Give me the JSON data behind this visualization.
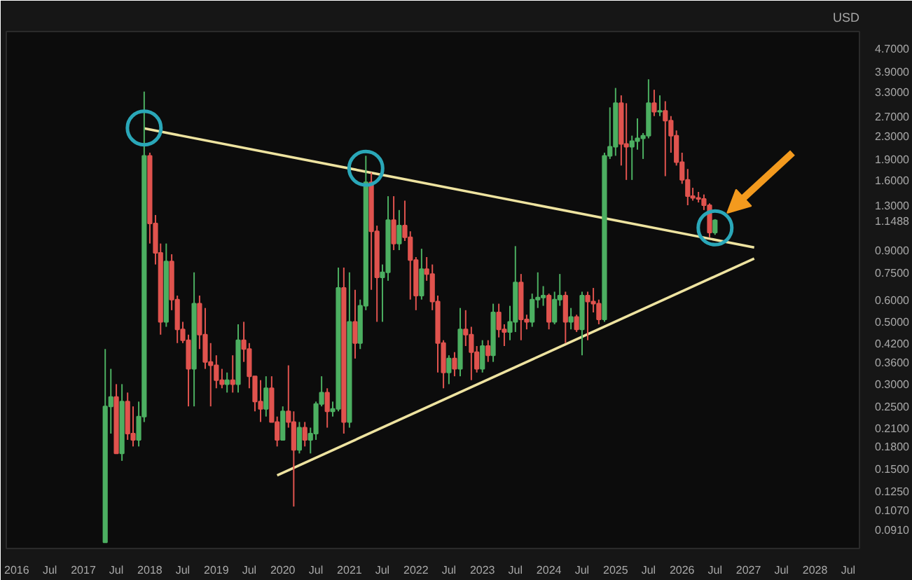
{
  "chart_data": {
    "type": "candlestick",
    "ylabel": "USD",
    "log": true,
    "xlim": [
      "2015-11-05",
      "2028-09-01"
    ],
    "xticks": [
      {
        "value": "2016-01",
        "label": "2016"
      },
      {
        "value": "2016-07",
        "label": "Jul"
      },
      {
        "value": "2017-01",
        "label": "2017"
      },
      {
        "value": "2017-07",
        "label": "Jul"
      },
      {
        "value": "2018-01",
        "label": "2018"
      },
      {
        "value": "2018-07",
        "label": "Jul"
      },
      {
        "value": "2019-01",
        "label": "2019"
      },
      {
        "value": "2019-07",
        "label": "Jul"
      },
      {
        "value": "2020-01",
        "label": "2020"
      },
      {
        "value": "2020-07",
        "label": "Jul"
      },
      {
        "value": "2021-01",
        "label": "2021"
      },
      {
        "value": "2021-07",
        "label": "Jul"
      },
      {
        "value": "2022-01",
        "label": "2022"
      },
      {
        "value": "2022-07",
        "label": "Jul"
      },
      {
        "value": "2023-01",
        "label": "2023"
      },
      {
        "value": "2023-07",
        "label": "Jul"
      },
      {
        "value": "2024-01",
        "label": "2024"
      },
      {
        "value": "2024-07",
        "label": "Jul"
      },
      {
        "value": "2025-01",
        "label": "2025"
      },
      {
        "value": "2025-07",
        "label": "Jul"
      },
      {
        "value": "2026-01",
        "label": "2026"
      },
      {
        "value": "2026-07",
        "label": "Jul"
      },
      {
        "value": "2027-01",
        "label": "2027"
      },
      {
        "value": "2027-07",
        "label": "Jul"
      },
      {
        "value": "2028-01",
        "label": "2028"
      },
      {
        "value": "2028-07",
        "label": "Jul"
      }
    ],
    "ylim": [
      0.078,
      5.4
    ],
    "yticks": [
      {
        "value": 4.7,
        "label": "4.7000"
      },
      {
        "value": 3.9,
        "label": "3.9000"
      },
      {
        "value": 3.3,
        "label": "3.3000"
      },
      {
        "value": 2.7,
        "label": "2.7000"
      },
      {
        "value": 2.3,
        "label": "2.3000"
      },
      {
        "value": 1.9,
        "label": "1.9000"
      },
      {
        "value": 1.6,
        "label": "1.6000"
      },
      {
        "value": 1.3,
        "label": "1.3000"
      },
      {
        "value": 1.1488,
        "label": "1.1488"
      },
      {
        "value": 0.9,
        "label": "0.9000"
      },
      {
        "value": 0.75,
        "label": "0.7500"
      },
      {
        "value": 0.6,
        "label": "0.6000"
      },
      {
        "value": 0.5,
        "label": "0.5000"
      },
      {
        "value": 0.42,
        "label": "0.4200"
      },
      {
        "value": 0.36,
        "label": "0.3600"
      },
      {
        "value": 0.3,
        "label": "0.3000"
      },
      {
        "value": 0.25,
        "label": "0.2500"
      },
      {
        "value": 0.21,
        "label": "0.2100"
      },
      {
        "value": 0.18,
        "label": "0.1800"
      },
      {
        "value": 0.15,
        "label": "0.1500"
      },
      {
        "value": 0.125,
        "label": "0.1250"
      },
      {
        "value": 0.107,
        "label": "0.1070"
      },
      {
        "value": 0.091,
        "label": "0.0910"
      }
    ],
    "x": [
      "2017-05",
      "2017-06",
      "2017-07",
      "2017-08",
      "2017-09",
      "2017-10",
      "2017-11",
      "2017-12",
      "2018-01",
      "2018-02",
      "2018-03",
      "2018-04",
      "2018-05",
      "2018-06",
      "2018-07",
      "2018-08",
      "2018-09",
      "2018-10",
      "2018-11",
      "2018-12",
      "2019-01",
      "2019-02",
      "2019-03",
      "2019-04",
      "2019-05",
      "2019-06",
      "2019-07",
      "2019-08",
      "2019-09",
      "2019-10",
      "2019-11",
      "2019-12",
      "2020-01",
      "2020-02",
      "2020-03",
      "2020-04",
      "2020-05",
      "2020-06",
      "2020-07",
      "2020-08",
      "2020-09",
      "2020-10",
      "2020-11",
      "2020-12",
      "2021-01",
      "2021-02",
      "2021-03",
      "2021-04",
      "2021-05",
      "2021-06",
      "2021-07",
      "2021-08",
      "2021-09",
      "2021-10",
      "2021-11",
      "2021-12",
      "2022-01",
      "2022-02",
      "2022-03",
      "2022-04",
      "2022-05",
      "2022-06",
      "2022-07",
      "2022-08",
      "2022-09",
      "2022-10",
      "2022-11",
      "2022-12",
      "2023-01",
      "2023-02",
      "2023-03",
      "2023-04",
      "2023-05",
      "2023-06",
      "2023-07",
      "2023-08",
      "2023-09",
      "2023-10",
      "2023-11",
      "2023-12",
      "2024-01",
      "2024-02",
      "2024-03",
      "2024-04",
      "2024-05",
      "2024-06",
      "2024-07",
      "2024-08",
      "2024-09",
      "2024-10",
      "2024-11",
      "2024-12",
      "2025-01",
      "2025-02",
      "2025-03",
      "2025-04",
      "2025-05",
      "2025-06",
      "2025-07",
      "2025-08",
      "2025-09",
      "2025-10",
      "2025-11",
      "2025-12",
      "2026-01",
      "2026-02",
      "2026-03",
      "2026-04",
      "2026-05",
      "2026-06",
      "2026-07"
    ],
    "ohlc": [
      [
        0.082,
        0.4,
        0.082,
        0.25
      ],
      [
        0.25,
        0.34,
        0.2,
        0.27
      ],
      [
        0.27,
        0.3,
        0.17,
        0.17
      ],
      [
        0.17,
        0.3,
        0.16,
        0.26
      ],
      [
        0.26,
        0.28,
        0.19,
        0.2
      ],
      [
        0.2,
        0.25,
        0.18,
        0.19
      ],
      [
        0.19,
        0.26,
        0.18,
        0.23
      ],
      [
        0.23,
        3.3,
        0.22,
        1.95
      ],
      [
        1.95,
        2.0,
        0.95,
        1.12
      ],
      [
        1.12,
        1.2,
        0.8,
        0.88
      ],
      [
        0.88,
        0.95,
        0.45,
        0.5
      ],
      [
        0.5,
        0.95,
        0.48,
        0.82
      ],
      [
        0.82,
        0.87,
        0.55,
        0.6
      ],
      [
        0.6,
        0.62,
        0.42,
        0.47
      ],
      [
        0.47,
        0.5,
        0.42,
        0.43
      ],
      [
        0.43,
        0.45,
        0.25,
        0.34
      ],
      [
        0.34,
        0.75,
        0.25,
        0.58
      ],
      [
        0.58,
        0.62,
        0.4,
        0.45
      ],
      [
        0.45,
        0.56,
        0.34,
        0.36
      ],
      [
        0.36,
        0.42,
        0.25,
        0.35
      ],
      [
        0.35,
        0.38,
        0.29,
        0.31
      ],
      [
        0.31,
        0.34,
        0.29,
        0.3
      ],
      [
        0.3,
        0.33,
        0.28,
        0.31
      ],
      [
        0.31,
        0.38,
        0.28,
        0.3
      ],
      [
        0.3,
        0.49,
        0.28,
        0.43
      ],
      [
        0.43,
        0.5,
        0.36,
        0.4
      ],
      [
        0.4,
        0.42,
        0.29,
        0.32
      ],
      [
        0.32,
        0.32,
        0.24,
        0.26
      ],
      [
        0.26,
        0.31,
        0.22,
        0.245
      ],
      [
        0.245,
        0.32,
        0.23,
        0.29
      ],
      [
        0.29,
        0.32,
        0.22,
        0.22
      ],
      [
        0.22,
        0.23,
        0.18,
        0.19
      ],
      [
        0.19,
        0.25,
        0.19,
        0.24
      ],
      [
        0.24,
        0.35,
        0.21,
        0.22
      ],
      [
        0.22,
        0.24,
        0.11,
        0.175
      ],
      [
        0.175,
        0.22,
        0.17,
        0.21
      ],
      [
        0.21,
        0.22,
        0.18,
        0.19
      ],
      [
        0.19,
        0.21,
        0.17,
        0.2
      ],
      [
        0.2,
        0.26,
        0.19,
        0.255
      ],
      [
        0.255,
        0.32,
        0.25,
        0.28
      ],
      [
        0.28,
        0.29,
        0.21,
        0.24
      ],
      [
        0.24,
        0.26,
        0.23,
        0.245
      ],
      [
        0.245,
        0.78,
        0.24,
        0.66
      ],
      [
        0.66,
        0.78,
        0.2,
        0.22
      ],
      [
        0.22,
        0.75,
        0.21,
        0.5
      ],
      [
        0.5,
        0.65,
        0.37,
        0.42
      ],
      [
        0.42,
        0.6,
        0.4,
        0.57
      ],
      [
        0.57,
        1.95,
        0.55,
        1.57
      ],
      [
        1.57,
        1.7,
        0.65,
        1.05
      ],
      [
        1.05,
        1.1,
        0.5,
        0.72
      ],
      [
        0.72,
        0.8,
        0.5,
        0.75
      ],
      [
        0.75,
        1.4,
        0.7,
        1.15
      ],
      [
        1.15,
        1.4,
        0.9,
        0.95
      ],
      [
        0.95,
        1.25,
        0.9,
        1.1
      ],
      [
        1.1,
        1.35,
        0.97,
        1.0
      ],
      [
        1.0,
        1.05,
        0.6,
        0.83
      ],
      [
        0.83,
        0.85,
        0.55,
        0.62
      ],
      [
        0.62,
        0.91,
        0.6,
        0.77
      ],
      [
        0.77,
        0.85,
        0.7,
        0.74
      ],
      [
        0.74,
        0.8,
        0.55,
        0.59
      ],
      [
        0.59,
        0.62,
        0.33,
        0.42
      ],
      [
        0.42,
        0.43,
        0.29,
        0.33
      ],
      [
        0.33,
        0.38,
        0.3,
        0.37
      ],
      [
        0.37,
        0.39,
        0.32,
        0.34
      ],
      [
        0.34,
        0.56,
        0.32,
        0.47
      ],
      [
        0.47,
        0.55,
        0.41,
        0.45
      ],
      [
        0.45,
        0.48,
        0.31,
        0.39
      ],
      [
        0.39,
        0.41,
        0.33,
        0.34
      ],
      [
        0.34,
        0.43,
        0.33,
        0.41
      ],
      [
        0.41,
        0.43,
        0.36,
        0.38
      ],
      [
        0.38,
        0.58,
        0.36,
        0.54
      ],
      [
        0.54,
        0.58,
        0.44,
        0.47
      ],
      [
        0.47,
        0.49,
        0.41,
        0.46
      ],
      [
        0.46,
        0.57,
        0.43,
        0.5
      ],
      [
        0.5,
        0.93,
        0.46,
        0.69
      ],
      [
        0.69,
        0.74,
        0.43,
        0.51
      ],
      [
        0.51,
        0.53,
        0.47,
        0.5
      ],
      [
        0.5,
        0.63,
        0.48,
        0.6
      ],
      [
        0.6,
        0.75,
        0.56,
        0.61
      ],
      [
        0.61,
        0.67,
        0.57,
        0.62
      ],
      [
        0.62,
        0.63,
        0.47,
        0.5
      ],
      [
        0.5,
        0.64,
        0.49,
        0.6
      ],
      [
        0.6,
        0.74,
        0.57,
        0.62
      ],
      [
        0.62,
        0.64,
        0.42,
        0.5
      ],
      [
        0.5,
        0.56,
        0.47,
        0.52
      ],
      [
        0.52,
        0.53,
        0.46,
        0.47
      ],
      [
        0.47,
        0.64,
        0.38,
        0.62
      ],
      [
        0.62,
        0.64,
        0.43,
        0.59
      ],
      [
        0.59,
        0.66,
        0.54,
        0.58
      ],
      [
        0.58,
        0.6,
        0.49,
        0.51
      ],
      [
        0.51,
        2.0,
        0.5,
        1.95
      ],
      [
        1.95,
        2.9,
        1.9,
        2.1
      ],
      [
        2.1,
        3.4,
        1.95,
        3.0
      ],
      [
        3.0,
        3.2,
        1.8,
        2.15
      ],
      [
        2.15,
        3.0,
        1.6,
        2.1
      ],
      [
        2.1,
        2.3,
        1.6,
        2.2
      ],
      [
        2.2,
        2.65,
        2.05,
        2.25
      ],
      [
        2.25,
        2.35,
        1.9,
        2.3
      ],
      [
        2.3,
        3.65,
        2.25,
        3.0
      ],
      [
        3.0,
        3.35,
        2.7,
        2.8
      ],
      [
        2.8,
        3.2,
        2.7,
        2.82
      ],
      [
        2.82,
        3.05,
        1.65,
        2.6
      ],
      [
        2.6,
        2.7,
        2.0,
        2.3
      ],
      [
        2.3,
        2.4,
        1.8,
        1.85
      ],
      [
        1.85,
        2.0,
        1.55,
        1.6
      ],
      [
        1.6,
        1.75,
        1.3,
        1.4
      ],
      [
        1.4,
        1.5,
        1.35,
        1.38
      ],
      [
        1.38,
        1.45,
        1.33,
        1.37
      ],
      [
        1.37,
        1.42,
        1.25,
        1.3
      ],
      [
        1.3,
        1.32,
        1.0,
        1.04
      ],
      [
        1.04,
        1.16,
        1.02,
        1.1488
      ]
    ],
    "colors": [
      "#4caf61",
      "#4caf61",
      "#e0534e",
      "#4caf61",
      "#e0534e",
      "#e0534e",
      "#4caf61",
      "#4caf61",
      "#e0534e",
      "#e0534e",
      "#e0534e",
      "#4caf61",
      "#e0534e",
      "#e0534e",
      "#e0534e",
      "#e0534e",
      "#4caf61",
      "#e0534e",
      "#e0534e",
      "#e0534e",
      "#e0534e",
      "#e0534e",
      "#4caf61",
      "#e0534e",
      "#4caf61",
      "#e0534e",
      "#e0534e",
      "#e0534e",
      "#e0534e",
      "#4caf61",
      "#e0534e",
      "#e0534e",
      "#4caf61",
      "#e0534e",
      "#e0534e",
      "#4caf61",
      "#e0534e",
      "#4caf61",
      "#4caf61",
      "#4caf61",
      "#e0534e",
      "#4caf61",
      "#4caf61",
      "#e0534e",
      "#4caf61",
      "#e0534e",
      "#4caf61",
      "#4caf61",
      "#e0534e",
      "#e0534e",
      "#4caf61",
      "#4caf61",
      "#e0534e",
      "#4caf61",
      "#e0534e",
      "#e0534e",
      "#e0534e",
      "#4caf61",
      "#e0534e",
      "#e0534e",
      "#e0534e",
      "#e0534e",
      "#4caf61",
      "#e0534e",
      "#4caf61",
      "#e0534e",
      "#e0534e",
      "#e0534e",
      "#4caf61",
      "#e0534e",
      "#4caf61",
      "#e0534e",
      "#e0534e",
      "#4caf61",
      "#4caf61",
      "#e0534e",
      "#e0534e",
      "#4caf61",
      "#4caf61",
      "#4caf61",
      "#e0534e",
      "#4caf61",
      "#4caf61",
      "#e0534e",
      "#4caf61",
      "#e0534e",
      "#4caf61",
      "#e0534e",
      "#e0534e",
      "#e0534e",
      "#4caf61",
      "#4caf61",
      "#4caf61",
      "#e0534e",
      "#e0534e",
      "#4caf61",
      "#4caf61",
      "#4caf61",
      "#4caf61",
      "#e0534e",
      "#4caf61",
      "#e0534e",
      "#e0534e",
      "#e0534e",
      "#e0534e",
      "#e0534e",
      "#e0534e",
      "#e0534e",
      "#e0534e",
      "#e0534e",
      "#4caf61"
    ],
    "series": [
      {
        "type": "line",
        "color": "#eee3a0",
        "x": [
          "2017-12",
          "2027-02"
        ],
        "values": [
          2.44,
          0.92
        ]
      },
      {
        "type": "line",
        "color": "#eee3a0",
        "x": [
          "2019-12",
          "2027-02"
        ],
        "values": [
          0.142,
          0.84
        ]
      },
      {
        "type": "scatter",
        "marker": "circle",
        "color": "#2aa7b8",
        "x": [
          "2017-12",
          "2021-04",
          "2026-07"
        ],
        "values": [
          2.45,
          1.76,
          1.08
        ]
      }
    ]
  }
}
